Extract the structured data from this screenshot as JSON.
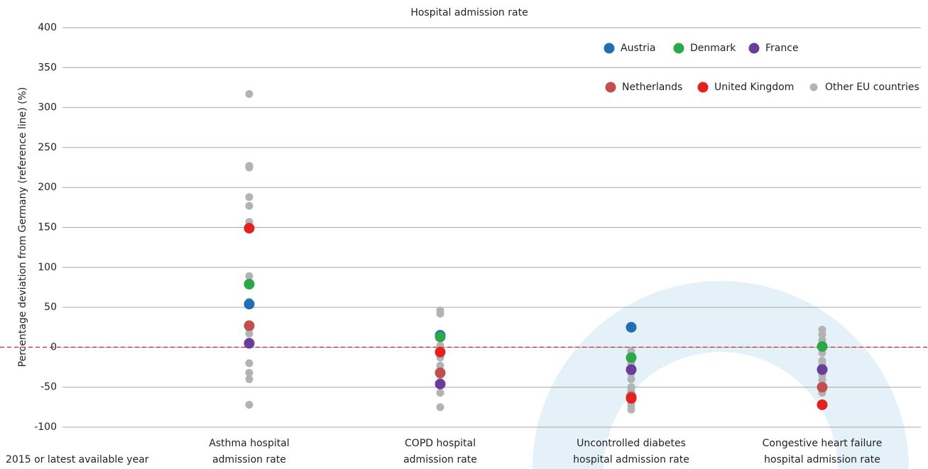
{
  "chart_data": {
    "type": "strip",
    "title": "Hospital admission rate",
    "y_label": "Percentage deviation from Germany (reference line) (%)",
    "note": "2015 or latest available year",
    "categories": [
      [
        "Asthma hospital",
        "admission rate"
      ],
      [
        "COPD hospital",
        "admission rate"
      ],
      [
        "Uncontrolled diabetes",
        "hospital admission rate"
      ],
      [
        "Congestive heart failure",
        "hospital admission rate"
      ]
    ],
    "ylim": [
      -100,
      400
    ],
    "yticks": [
      -100,
      -50,
      0,
      50,
      100,
      150,
      200,
      250,
      300,
      350,
      400
    ],
    "grid": true,
    "reference_line": 0,
    "reference_color": "#d0262b",
    "legend": "top-right",
    "series": [
      {
        "name": "Austria",
        "color": "#1f6fb5",
        "values": [
          54,
          15,
          25,
          null
        ]
      },
      {
        "name": "Denmark",
        "color": "#2ca84a",
        "values": [
          79,
          13,
          -13,
          1
        ]
      },
      {
        "name": "France",
        "color": "#6a3d9a",
        "values": [
          5,
          -46,
          -28,
          -28
        ]
      },
      {
        "name": "Netherlands",
        "color": "#c0504d",
        "values": [
          27,
          -32,
          -62,
          -50
        ]
      },
      {
        "name": "United Kingdom",
        "color": "#e3221f",
        "values": [
          149,
          -6,
          -64,
          -72
        ]
      },
      {
        "name": "Other EU countries",
        "color": "#b3b3b3",
        "values": [
          [
            317,
            227,
            225,
            188,
            177,
            157,
            89,
            57,
            28,
            23,
            17,
            3,
            -20,
            -32,
            -40,
            -72
          ],
          [
            46,
            42,
            15,
            2,
            -13,
            -23,
            -35,
            -47,
            -57,
            -75
          ],
          [
            -5,
            -10,
            -20,
            -33,
            -40,
            -50,
            -55,
            -60,
            -68,
            -73,
            -78
          ],
          [
            22,
            16,
            9,
            -7,
            -17,
            -22,
            -35,
            -41,
            -48,
            -53,
            -57
          ]
        ]
      }
    ]
  }
}
